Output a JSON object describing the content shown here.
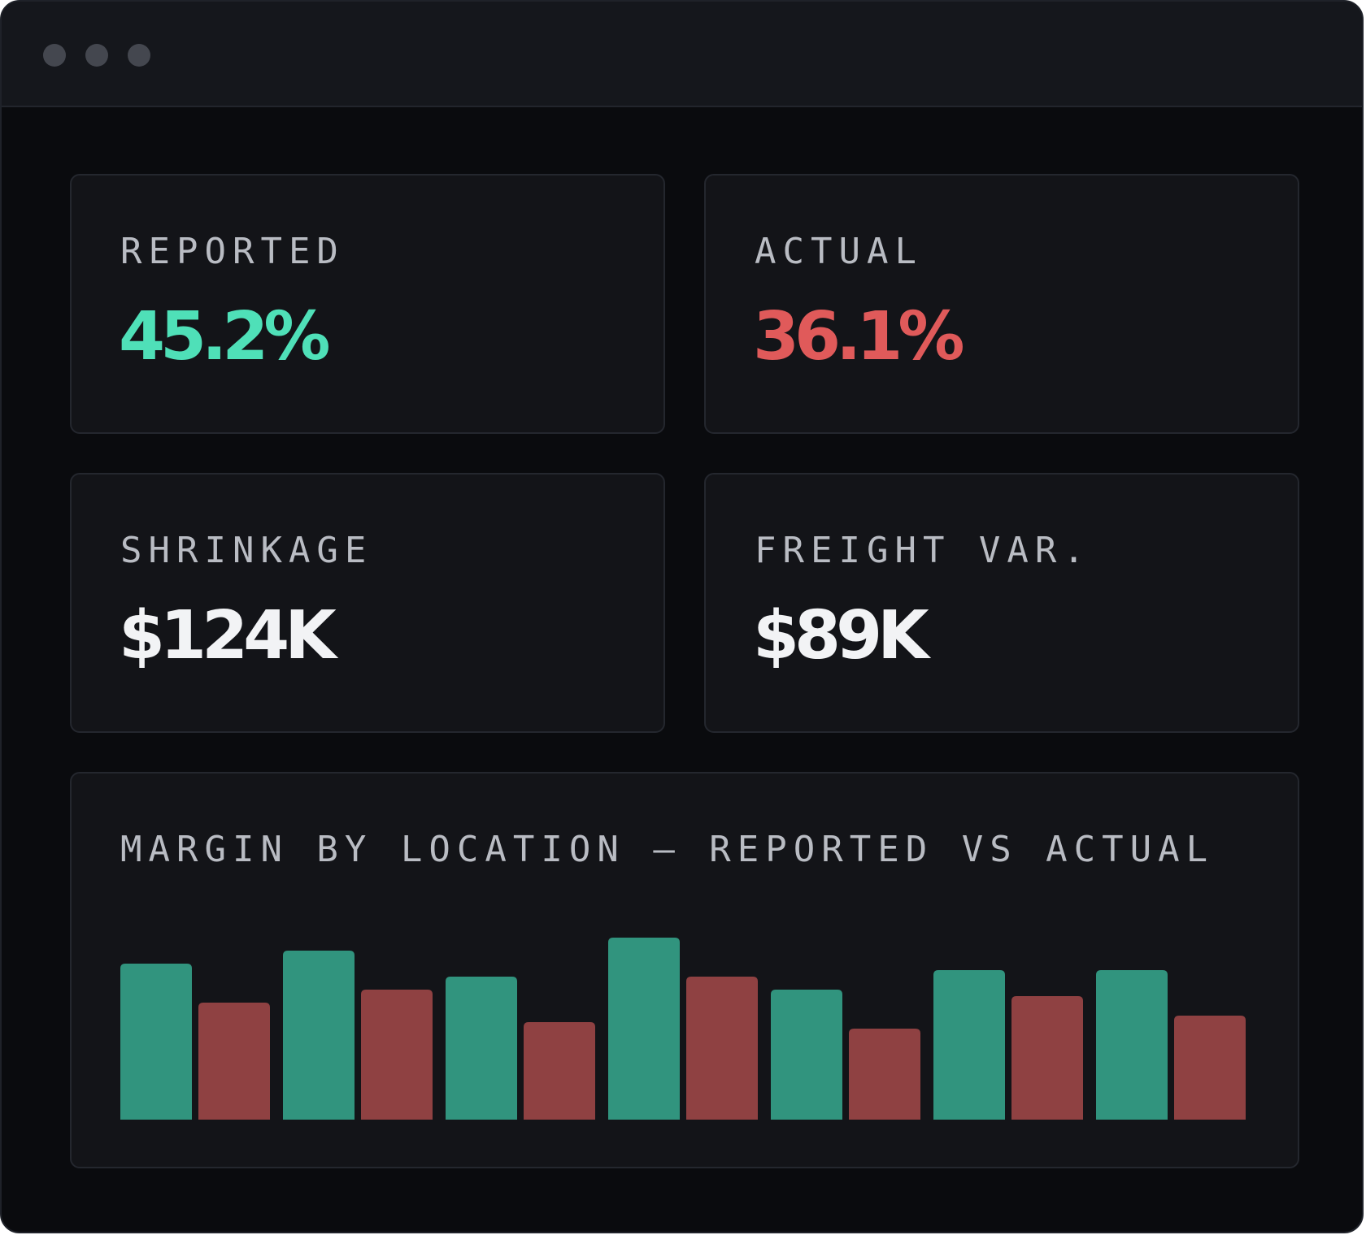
{
  "window": {
    "controls": [
      "window-dot",
      "window-dot",
      "window-dot"
    ]
  },
  "metrics": {
    "reported": {
      "label": "REPORTED",
      "value": "45.2%",
      "color": "#4fe0b8"
    },
    "actual": {
      "label": "ACTUAL",
      "value": "36.1%",
      "color": "#e05a5a"
    },
    "shrinkage": {
      "label": "SHRINKAGE",
      "value": "$124K",
      "color": "#f2f3f5"
    },
    "freight": {
      "label": "FREIGHT VAR.",
      "value": "$89K",
      "color": "#f2f3f5"
    }
  },
  "chart_panel": {
    "title": "MARGIN BY LOCATION — REPORTED VS ACTUAL"
  },
  "chart_data": {
    "type": "bar",
    "title": "MARGIN BY LOCATION — REPORTED VS ACTUAL",
    "categories": [
      "",
      "",
      "",
      "",
      "",
      "",
      ""
    ],
    "series": [
      {
        "values": [
          48,
          52,
          44,
          56,
          40,
          46,
          46
        ],
        "color": "#31947e"
      },
      {
        "values": [
          36,
          40,
          30,
          44,
          28,
          38,
          32
        ],
        "color": "#8f4142"
      }
    ],
    "ylim": [
      0,
      60
    ],
    "grid": false,
    "legend": "none"
  }
}
